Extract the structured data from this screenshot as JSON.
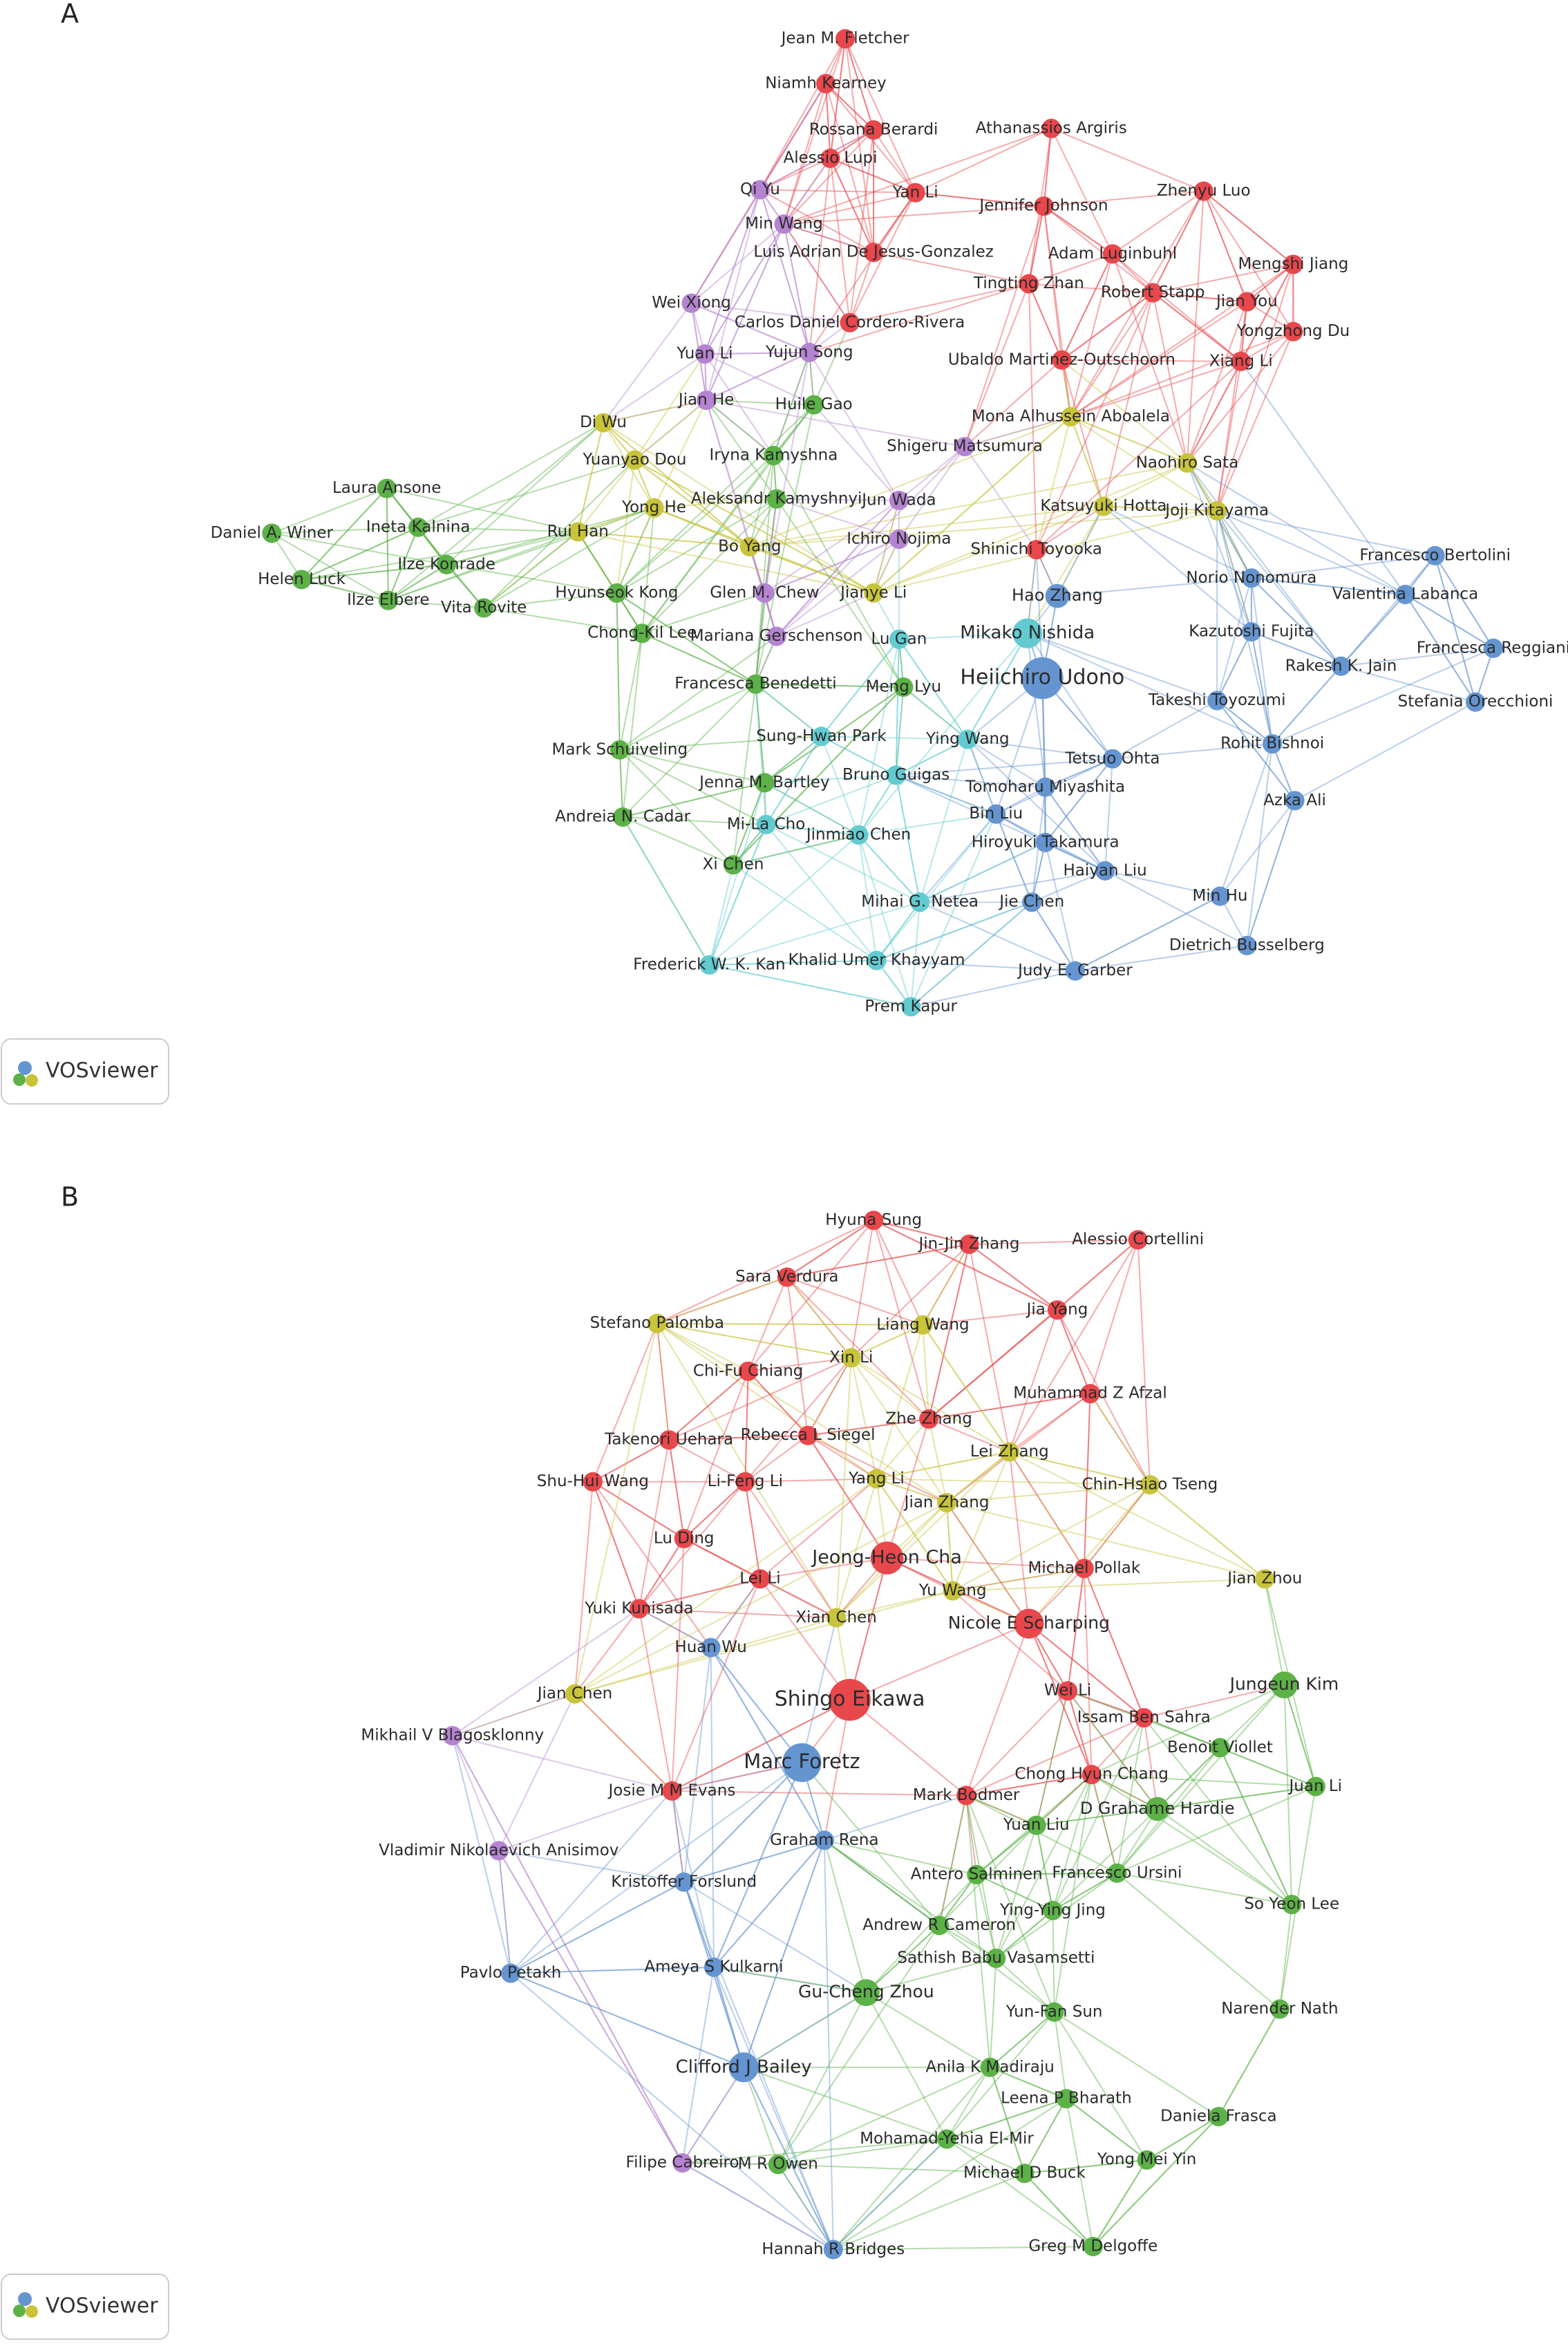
{
  "panel_a": {
    "letter": "A",
    "watermark": "VOSviewer",
    "nodes": [
      {
        "label": "Jean M. Fletcher",
        "color": "#e8474c"
      },
      {
        "label": "Niamh Kearney",
        "color": "#e8474c"
      },
      {
        "label": "Rossana Berardi",
        "color": "#e8474c"
      },
      {
        "label": "Alessio Lupi",
        "color": "#e8474c"
      },
      {
        "label": "Athanassios Argiris",
        "color": "#e8474c"
      },
      {
        "label": "Qi Yu",
        "color": "#b584d1"
      },
      {
        "label": "Yan Li",
        "color": "#e8474c"
      },
      {
        "label": "Jennifer Johnson",
        "color": "#e8474c"
      },
      {
        "label": "Zhenyu Luo",
        "color": "#e8474c"
      },
      {
        "label": "Min Wang",
        "color": "#b584d1"
      },
      {
        "label": "Luis Adrian De Jesus-Gonzalez",
        "color": "#e8474c"
      },
      {
        "label": "Adam Luginbuhl",
        "color": "#e8474c"
      },
      {
        "label": "Mengshi Jiang",
        "color": "#e8474c"
      },
      {
        "label": "Tingting Zhan",
        "color": "#e8474c"
      },
      {
        "label": "Robert Stapp",
        "color": "#e8474c"
      },
      {
        "label": "Wei Xiong",
        "color": "#b584d1"
      },
      {
        "label": "Jian You",
        "color": "#e8474c"
      },
      {
        "label": "Carlos Daniel Cordero-Rivera",
        "color": "#e8474c"
      },
      {
        "label": "Yongzhong Du",
        "color": "#e8474c"
      },
      {
        "label": "Yuan Li",
        "color": "#b584d1"
      },
      {
        "label": "Yujun Song",
        "color": "#b584d1"
      },
      {
        "label": "Ubaldo Martinez-Outschoorn",
        "color": "#e8474c"
      },
      {
        "label": "Xiang Li",
        "color": "#e8474c"
      },
      {
        "label": "Jian He",
        "color": "#b584d1"
      },
      {
        "label": "Huile Gao",
        "color": "#5cb147"
      },
      {
        "label": "Mona Alhussein Aboalela",
        "color": "#c8c43b"
      },
      {
        "label": "Di Wu",
        "color": "#c8c43b"
      },
      {
        "label": "Shigeru Matsumura",
        "color": "#b584d1"
      },
      {
        "label": "Iryna Kamyshna",
        "color": "#5cb147"
      },
      {
        "label": "Yuanyao Dou",
        "color": "#c8c43b"
      },
      {
        "label": "Naohiro Sata",
        "color": "#c8c43b"
      },
      {
        "label": "Laura Ansone",
        "color": "#5cb147"
      },
      {
        "label": "Aleksandr Kamyshnyi",
        "color": "#5cb147"
      },
      {
        "label": "Jun Wada",
        "color": "#b584d1"
      },
      {
        "label": "Yong He",
        "color": "#c8c43b"
      },
      {
        "label": "Katsuyuki Hotta",
        "color": "#c8c43b"
      },
      {
        "label": "Joji Kitayama",
        "color": "#c8c43b"
      },
      {
        "label": "Ineta Kalnina",
        "color": "#5cb147"
      },
      {
        "label": "Daniel A. Winer",
        "color": "#5cb147"
      },
      {
        "label": "Rui Han",
        "color": "#c8c43b"
      },
      {
        "label": "Ichiro Nojima",
        "color": "#b584d1"
      },
      {
        "label": "Bo Yang",
        "color": "#c8c43b"
      },
      {
        "label": "Shinichi Toyooka",
        "color": "#e8474c"
      },
      {
        "label": "Francesco Bertolini",
        "color": "#6595d1"
      },
      {
        "label": "Ilze Konrade",
        "color": "#5cb147"
      },
      {
        "label": "Norio Nonomura",
        "color": "#6595d1"
      },
      {
        "label": "Helen Luck",
        "color": "#5cb147"
      },
      {
        "label": "Hyunseok Kong",
        "color": "#5cb147"
      },
      {
        "label": "Glen M. Chew",
        "color": "#b584d1"
      },
      {
        "label": "Jianye Li",
        "color": "#c8c43b"
      },
      {
        "label": "Hao Zhang",
        "color": "#6595d1"
      },
      {
        "label": "Valentina Labanca",
        "color": "#6595d1"
      },
      {
        "label": "Ilze Elbere",
        "color": "#5cb147"
      },
      {
        "label": "Vita Rovite",
        "color": "#5cb147"
      },
      {
        "label": "Mikako Nishida",
        "color": "#62cbd0"
      },
      {
        "label": "Kazutoshi Fujita",
        "color": "#6595d1"
      },
      {
        "label": "Chong-Kil Lee",
        "color": "#5cb147"
      },
      {
        "label": "Mariana Gerschenson",
        "color": "#b584d1"
      },
      {
        "label": "Lu Gan",
        "color": "#62cbd0"
      },
      {
        "label": "Francesca Reggiani",
        "color": "#6595d1"
      },
      {
        "label": "Rakesh K. Jain",
        "color": "#6595d1"
      },
      {
        "label": "Heiichiro Udono",
        "color": "#6595d1"
      },
      {
        "label": "Francesca Benedetti",
        "color": "#5cb147"
      },
      {
        "label": "Meng Lyu",
        "color": "#5cb147"
      },
      {
        "label": "Takeshi Toyozumi",
        "color": "#6595d1"
      },
      {
        "label": "Stefania Orecchioni",
        "color": "#6595d1"
      },
      {
        "label": "Sung-Hwan Park",
        "color": "#62cbd0"
      },
      {
        "label": "Ying Wang",
        "color": "#62cbd0"
      },
      {
        "label": "Rohit Bishnoi",
        "color": "#6595d1"
      },
      {
        "label": "Mark Schuiveling",
        "color": "#5cb147"
      },
      {
        "label": "Tetsuo Ohta",
        "color": "#6595d1"
      },
      {
        "label": "Bruno Guigas",
        "color": "#62cbd0"
      },
      {
        "label": "Jenna M. Bartley",
        "color": "#5cb147"
      },
      {
        "label": "Tomoharu Miyashita",
        "color": "#6595d1"
      },
      {
        "label": "Azka Ali",
        "color": "#6595d1"
      },
      {
        "label": "Bin Liu",
        "color": "#6595d1"
      },
      {
        "label": "Andreia N. Cadar",
        "color": "#5cb147"
      },
      {
        "label": "Mi-La Cho",
        "color": "#62cbd0"
      },
      {
        "label": "Jinmiao Chen",
        "color": "#62cbd0"
      },
      {
        "label": "Hiroyuki Takamura",
        "color": "#6595d1"
      },
      {
        "label": "Xi Chen",
        "color": "#5cb147"
      },
      {
        "label": "Haiyan Liu",
        "color": "#6595d1"
      },
      {
        "label": "Min Hu",
        "color": "#6595d1"
      },
      {
        "label": "Mihai G. Netea",
        "color": "#62cbd0"
      },
      {
        "label": "Jie Chen",
        "color": "#6595d1"
      },
      {
        "label": "Dietrich Busselberg",
        "color": "#6595d1"
      },
      {
        "label": "Frederick W. K. Kan",
        "color": "#62cbd0"
      },
      {
        "label": "Khalid Umer Khayyam",
        "color": "#62cbd0"
      },
      {
        "label": "Judy E. Garber",
        "color": "#6595d1"
      },
      {
        "label": "Prem Kapur",
        "color": "#62cbd0"
      }
    ]
  },
  "panel_b": {
    "letter": "B",
    "watermark": "VOSviewer",
    "nodes": [
      {
        "label": "Hyuna Sung",
        "color": "#e8474c"
      },
      {
        "label": "Alessio Cortellini",
        "color": "#e8474c"
      },
      {
        "label": "Jin-Jin Zhang",
        "color": "#e8474c"
      },
      {
        "label": "Sara Verdura",
        "color": "#e8474c"
      },
      {
        "label": "Jia Yang",
        "color": "#e8474c"
      },
      {
        "label": "Stefano Palomba",
        "color": "#c8c43b"
      },
      {
        "label": "Liang Wang",
        "color": "#c8c43b"
      },
      {
        "label": "Xin Li",
        "color": "#c8c43b"
      },
      {
        "label": "Chi-Fu Chiang",
        "color": "#e8474c"
      },
      {
        "label": "Muhammad Z Afzal",
        "color": "#e8474c"
      },
      {
        "label": "Zhe Zhang",
        "color": "#e8474c"
      },
      {
        "label": "Rebecca L Siegel",
        "color": "#e8474c"
      },
      {
        "label": "Takenori Uehara",
        "color": "#e8474c"
      },
      {
        "label": "Lei Zhang",
        "color": "#c8c43b"
      },
      {
        "label": "Shu-Hui Wang",
        "color": "#e8474c"
      },
      {
        "label": "Li-Feng Li",
        "color": "#e8474c"
      },
      {
        "label": "Yang Li",
        "color": "#c8c43b"
      },
      {
        "label": "Chin-Hsiao Tseng",
        "color": "#c8c43b"
      },
      {
        "label": "Jian Zhang",
        "color": "#c8c43b"
      },
      {
        "label": "Lu Ding",
        "color": "#e8474c"
      },
      {
        "label": "Jeong-Heon Cha",
        "color": "#e8474c"
      },
      {
        "label": "Michael Pollak",
        "color": "#e8474c"
      },
      {
        "label": "Jian Zhou",
        "color": "#c8c43b"
      },
      {
        "label": "Lei Li",
        "color": "#e8474c"
      },
      {
        "label": "Yu Wang",
        "color": "#c8c43b"
      },
      {
        "label": "Yuki Kunisada",
        "color": "#e8474c"
      },
      {
        "label": "Xian Chen",
        "color": "#c8c43b"
      },
      {
        "label": "Nicole E Scharping",
        "color": "#e8474c"
      },
      {
        "label": "Huan Wu",
        "color": "#6595d1"
      },
      {
        "label": "Jungeun Kim",
        "color": "#5cb147"
      },
      {
        "label": "Wei Li",
        "color": "#e8474c"
      },
      {
        "label": "Shingo Eikawa",
        "color": "#e8474c"
      },
      {
        "label": "Jian Chen",
        "color": "#c8c43b"
      },
      {
        "label": "Issam Ben Sahra",
        "color": "#e8474c"
      },
      {
        "label": "Mikhail V Blagosklonny",
        "color": "#b584d1"
      },
      {
        "label": "Benoit Viollet",
        "color": "#5cb147"
      },
      {
        "label": "Marc Foretz",
        "color": "#6595d1"
      },
      {
        "label": "Chong Hyun Chang",
        "color": "#e8474c"
      },
      {
        "label": "Josie M M Evans",
        "color": "#e8474c"
      },
      {
        "label": "Juan Li",
        "color": "#5cb147"
      },
      {
        "label": "Mark Bodmer",
        "color": "#e8474c"
      },
      {
        "label": "D Grahame Hardie",
        "color": "#5cb147"
      },
      {
        "label": "Yuan Liu",
        "color": "#5cb147"
      },
      {
        "label": "Graham Rena",
        "color": "#6595d1"
      },
      {
        "label": "Vladimir Nikolaevich Anisimov",
        "color": "#b584d1"
      },
      {
        "label": "Antero Salminen",
        "color": "#5cb147"
      },
      {
        "label": "Francesco Ursini",
        "color": "#5cb147"
      },
      {
        "label": "Kristoffer Forslund",
        "color": "#6595d1"
      },
      {
        "label": "Andrew R Cameron",
        "color": "#5cb147"
      },
      {
        "label": "Ying-Ying Jing",
        "color": "#5cb147"
      },
      {
        "label": "So Yeon Lee",
        "color": "#5cb147"
      },
      {
        "label": "Sathish Babu Vasamsetti",
        "color": "#5cb147"
      },
      {
        "label": "Ameya S Kulkarni",
        "color": "#6595d1"
      },
      {
        "label": "Pavlo Petakh",
        "color": "#6595d1"
      },
      {
        "label": "Gu-Cheng Zhou",
        "color": "#5cb147"
      },
      {
        "label": "Narender Nath",
        "color": "#5cb147"
      },
      {
        "label": "Yun-Fan Sun",
        "color": "#5cb147"
      },
      {
        "label": "Clifford J Bailey",
        "color": "#6595d1"
      },
      {
        "label": "Anila K Madiraju",
        "color": "#5cb147"
      },
      {
        "label": "Leena P Bharath",
        "color": "#5cb147"
      },
      {
        "label": "Daniela Frasca",
        "color": "#5cb147"
      },
      {
        "label": "Mohamad-Yehia El-Mir",
        "color": "#5cb147"
      },
      {
        "label": "Yong Mei Yin",
        "color": "#5cb147"
      },
      {
        "label": "Filipe Cabreiro",
        "color": "#b584d1"
      },
      {
        "label": "M R Owen",
        "color": "#5cb147"
      },
      {
        "label": "Michael D Buck",
        "color": "#5cb147"
      },
      {
        "label": "Greg M Delgoffe",
        "color": "#5cb147"
      },
      {
        "label": "Hannah R Bridges",
        "color": "#6595d1"
      }
    ]
  }
}
